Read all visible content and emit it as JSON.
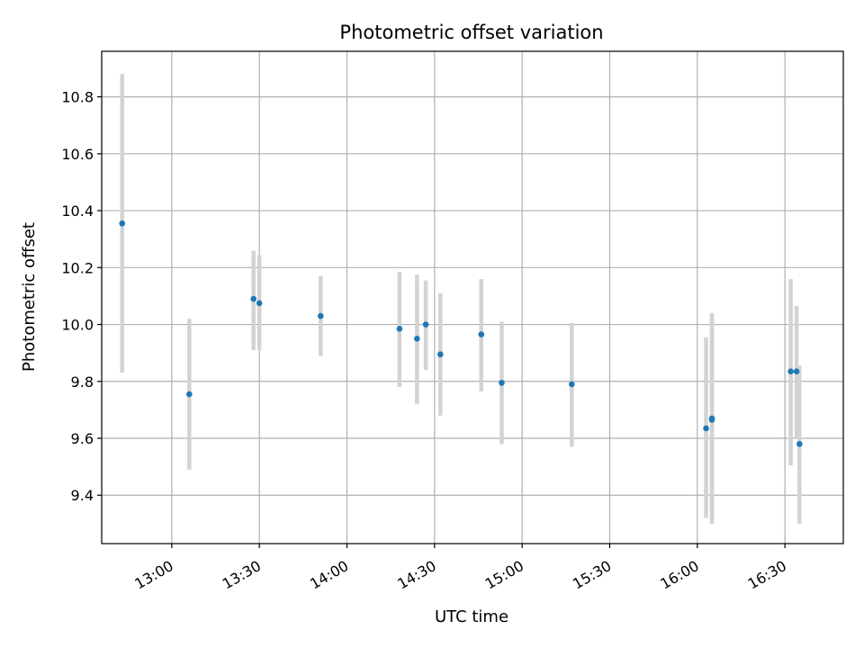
{
  "chart_data": {
    "type": "scatter",
    "title": "Photometric offset variation",
    "xlabel": "UTC time",
    "ylabel": "Photometric offset",
    "grid": true,
    "xlim": [
      "12:36",
      "16:50"
    ],
    "ylim": [
      9.23,
      10.96
    ],
    "x_ticks": [
      "13:00",
      "13:30",
      "14:00",
      "14:30",
      "15:00",
      "15:30",
      "16:00",
      "16:30"
    ],
    "y_ticks": [
      9.4,
      9.6,
      9.8,
      10.0,
      10.2,
      10.4,
      10.6,
      10.8
    ],
    "colors": {
      "point": "#1f77b4",
      "errorbar": "#d3d3d3",
      "grid": "#b0b0b0"
    },
    "points": [
      {
        "x": "12:43",
        "y": 10.355,
        "ylow": 9.83,
        "yhigh": 10.88
      },
      {
        "x": "13:06",
        "y": 9.755,
        "ylow": 9.49,
        "yhigh": 10.02
      },
      {
        "x": "13:28",
        "y": 10.09,
        "ylow": 9.91,
        "yhigh": 10.26
      },
      {
        "x": "13:30",
        "y": 10.075,
        "ylow": 9.91,
        "yhigh": 10.245
      },
      {
        "x": "13:51",
        "y": 10.03,
        "ylow": 9.89,
        "yhigh": 10.17
      },
      {
        "x": "14:18",
        "y": 9.985,
        "ylow": 9.78,
        "yhigh": 10.185
      },
      {
        "x": "14:24",
        "y": 9.95,
        "ylow": 9.72,
        "yhigh": 10.175
      },
      {
        "x": "14:27",
        "y": 10.0,
        "ylow": 9.84,
        "yhigh": 10.155
      },
      {
        "x": "14:32",
        "y": 9.895,
        "ylow": 9.68,
        "yhigh": 10.11
      },
      {
        "x": "14:46",
        "y": 9.965,
        "ylow": 9.765,
        "yhigh": 10.16
      },
      {
        "x": "14:53",
        "y": 9.795,
        "ylow": 9.58,
        "yhigh": 10.01
      },
      {
        "x": "15:17",
        "y": 9.79,
        "ylow": 9.57,
        "yhigh": 10.005
      },
      {
        "x": "16:03",
        "y": 9.635,
        "ylow": 9.32,
        "yhigh": 9.955
      },
      {
        "x": "16:05",
        "y": 9.665,
        "ylow": 9.3,
        "yhigh": 10.035
      },
      {
        "x": "16:05",
        "y": 9.67,
        "ylow": 9.305,
        "yhigh": 10.04
      },
      {
        "x": "16:32",
        "y": 9.835,
        "ylow": 9.505,
        "yhigh": 10.16
      },
      {
        "x": "16:34",
        "y": 9.835,
        "ylow": 9.6,
        "yhigh": 10.065
      },
      {
        "x": "16:35",
        "y": 9.58,
        "ylow": 9.3,
        "yhigh": 9.855
      }
    ]
  }
}
